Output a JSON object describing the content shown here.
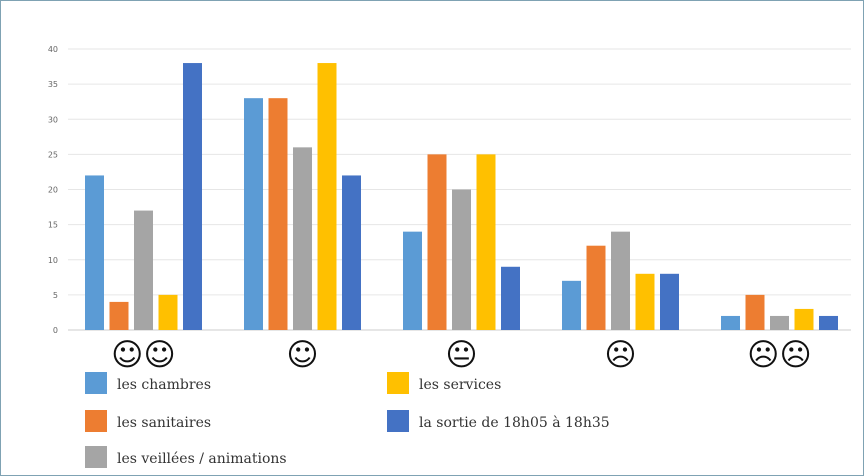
{
  "chart_data": {
    "type": "bar",
    "categories": [
      "☺☺",
      "☺",
      "😐",
      "☹",
      "☹☹"
    ],
    "series": [
      {
        "name": "les chambres",
        "color": "#5b9bd5",
        "values": [
          22,
          33,
          14,
          7,
          2
        ]
      },
      {
        "name": "les sanitaires",
        "color": "#ed7d31",
        "values": [
          4,
          33,
          25,
          12,
          5
        ]
      },
      {
        "name": "les veillées / animations",
        "color": "#a5a5a5",
        "values": [
          17,
          26,
          20,
          14,
          2
        ]
      },
      {
        "name": "les services",
        "color": "#ffc000",
        "values": [
          5,
          38,
          25,
          8,
          3
        ]
      },
      {
        "name": "la sortie de 18h05 à 18h35",
        "color": "#4472c4",
        "values": [
          38,
          22,
          9,
          8,
          2
        ]
      }
    ],
    "yticks": [
      0,
      5,
      10,
      15,
      20,
      25,
      30,
      35,
      40
    ],
    "ylim": [
      0,
      40
    ],
    "grid": true,
    "legend_position": "bottom"
  }
}
